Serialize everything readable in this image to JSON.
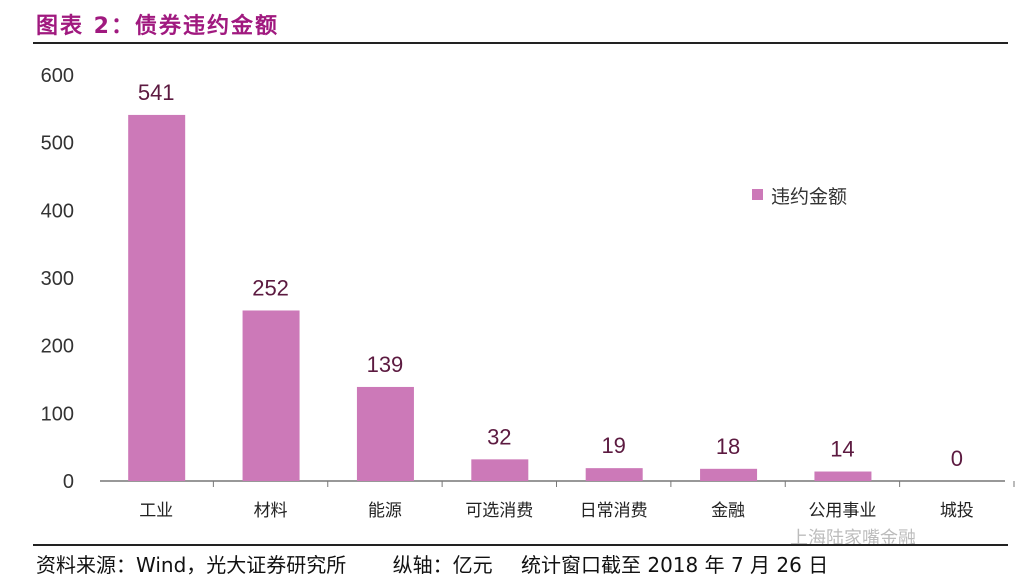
{
  "header": {
    "title": "图表 2：债券违约金额"
  },
  "footer": {
    "source": "资料来源：Wind，光大证券研究所",
    "unit": "纵轴：亿元",
    "note": "统计窗口截至 2018 年 7 月 26 日"
  },
  "watermark": "上海陆家嘴金融",
  "chart_data": {
    "type": "bar",
    "title": "",
    "categories": [
      "工业",
      "材料",
      "能源",
      "可选消费",
      "日常消费",
      "金融",
      "公用事业",
      "城投"
    ],
    "series": [
      {
        "name": "违约金额",
        "values": [
          541,
          252,
          139,
          32,
          19,
          18,
          14,
          0
        ],
        "color": "#cc79b8"
      }
    ],
    "ylim": [
      0,
      600
    ],
    "yticks": [
      0,
      100,
      200,
      300,
      400,
      500,
      600
    ],
    "grid": false,
    "legend": "right",
    "data_label_color": "#5c1a40"
  }
}
